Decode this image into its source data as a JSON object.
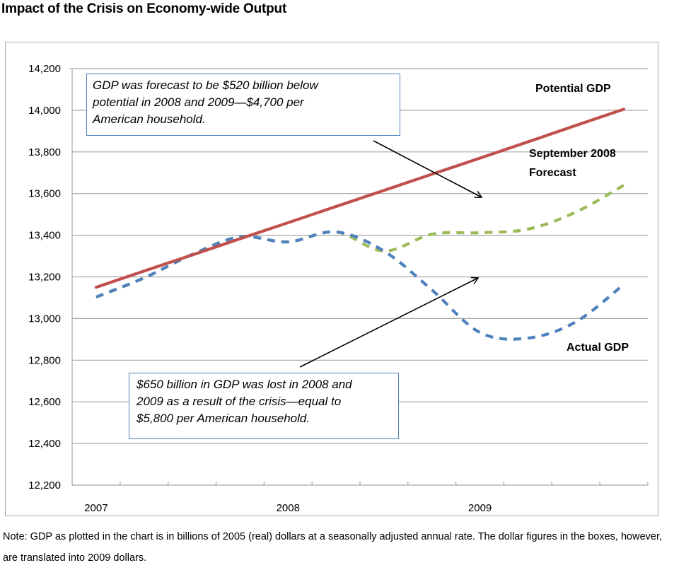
{
  "title": "Impact of the Crisis on Economy-wide Output",
  "chart_data": {
    "type": "line",
    "title": "Impact of the Crisis on Economy-wide Output",
    "xlabel": "",
    "ylabel": "",
    "ylim": [
      12200,
      14200
    ],
    "yticks": [
      14200,
      14000,
      13800,
      13600,
      13400,
      13200,
      13000,
      12800,
      12600,
      12400,
      12200
    ],
    "ytick_labels": [
      "14,200",
      "14,000",
      "13,800",
      "13,600",
      "13,400",
      "13,200",
      "13,000",
      "12,800",
      "12,600",
      "12,400",
      "12,200"
    ],
    "x": [
      "2007 Q1",
      "2007 Q2",
      "2007 Q3",
      "2007 Q4",
      "2008 Q1",
      "2008 Q2",
      "2008 Q3",
      "2008 Q4",
      "2009 Q1",
      "2009 Q2",
      "2009 Q3",
      "2009 Q4"
    ],
    "xtick_labels": [
      {
        "label": "2007",
        "index": 0
      },
      {
        "label": "2008",
        "index": 4
      },
      {
        "label": "2009",
        "index": 8
      }
    ],
    "grid": true,
    "series": [
      {
        "name": "Potential GDP",
        "style": "solid",
        "color": "#c0504d",
        "values": [
          13150,
          13228,
          13305,
          13383,
          13460,
          13538,
          13615,
          13693,
          13770,
          13848,
          13927,
          14005
        ]
      },
      {
        "name": "September 2008 Forecast",
        "style": "dashed",
        "color": "#9bbb59",
        "values": [
          13103,
          13195,
          13307,
          13392,
          13368,
          13416,
          13324,
          13405,
          13412,
          13429,
          13511,
          13640
        ]
      },
      {
        "name": "Actual GDP",
        "style": "dashed",
        "color": "#4f81bd",
        "values": [
          13103,
          13195,
          13307,
          13392,
          13368,
          13416,
          13324,
          13137,
          12933,
          12906,
          12984,
          13164
        ]
      }
    ],
    "legend": "inline labels on right",
    "annotations": [
      "GDP was forecast to be $520 billion below potential in 2008  and 2009—$4,700 per American household.",
      "$650 billion in GDP was lost in 2008  and 2009 as a result of the crisis—equal to $5,800 per American household."
    ]
  },
  "labels": {
    "potential": "Potential GDP",
    "forecast_line1": "September 2008",
    "forecast_line2": "Forecast",
    "actual": "Actual GDP"
  },
  "callouts": {
    "top_line1": "GDP was forecast to be $520 billion below",
    "top_line2": "potential in 2008  and 2009—$4,700 per",
    "top_line3": "American household.",
    "bottom_line1": "$650 billion in GDP was lost in 2008  and",
    "bottom_line2": "2009 as a result of the crisis—equal to",
    "bottom_line3": "$5,800 per American household."
  },
  "note": "Note: GDP as plotted in the chart is in billions of 2005 (real) dollars at a seasonally adjusted annual rate. The dollar figures in the boxes, however, are translated into 2009 dollars."
}
